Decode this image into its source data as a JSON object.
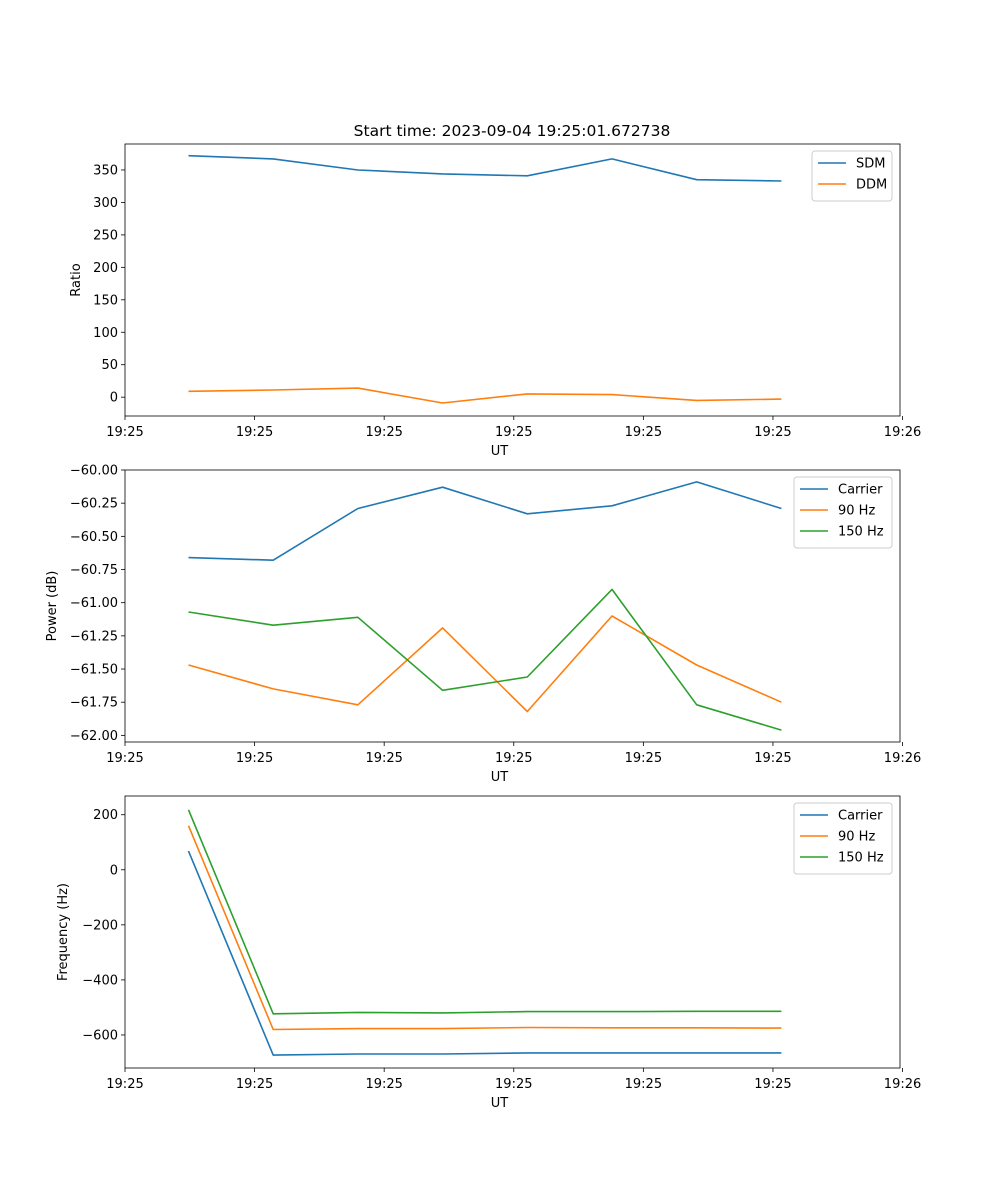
{
  "figure": {
    "title": "Start time: 2023-09-04 19:25:01.672738"
  },
  "colors": {
    "c0": "#1f77b4",
    "c1": "#ff7f0e",
    "c2": "#2ca02c"
  },
  "chart_data": [
    {
      "type": "line",
      "title": "Start time: 2023-09-04 19:25:01.672738",
      "xlabel": "UT",
      "ylabel": "Ratio",
      "x": [
        0,
        1,
        2,
        3,
        4,
        5,
        6,
        7
      ],
      "xlim": [
        -0.75,
        8.4
      ],
      "xticks": [
        -0.75,
        0.78,
        2.31,
        3.84,
        5.37,
        6.9,
        8.43
      ],
      "xtick_labels": [
        "19:25",
        "19:25",
        "19:25",
        "19:25",
        "19:25",
        "19:25",
        "19:26"
      ],
      "ylim": [
        -29,
        390
      ],
      "yticks": [
        0,
        50,
        100,
        150,
        200,
        250,
        300,
        350
      ],
      "ytick_labels": [
        "0",
        "50",
        "100",
        "150",
        "200",
        "250",
        "300",
        "350"
      ],
      "legend_position": "top-right",
      "series": [
        {
          "name": "SDM",
          "color": "#1f77b4",
          "values": [
            372,
            367,
            350,
            344,
            341,
            367,
            335,
            333
          ]
        },
        {
          "name": "DDM",
          "color": "#ff7f0e",
          "values": [
            9,
            11,
            14,
            -9,
            5,
            4,
            -5,
            -3
          ]
        }
      ]
    },
    {
      "type": "line",
      "title": "",
      "xlabel": "UT",
      "ylabel": "Power (dB)",
      "x": [
        0,
        1,
        2,
        3,
        4,
        5,
        6,
        7
      ],
      "xlim": [
        -0.75,
        8.4
      ],
      "xticks": [
        -0.75,
        0.78,
        2.31,
        3.84,
        5.37,
        6.9,
        8.43
      ],
      "xtick_labels": [
        "19:25",
        "19:25",
        "19:25",
        "19:25",
        "19:25",
        "19:25",
        "19:26"
      ],
      "ylim": [
        -62.05,
        -60.0
      ],
      "yticks": [
        -60.0,
        -60.25,
        -60.5,
        -60.75,
        -61.0,
        -61.25,
        -61.5,
        -61.75,
        -62.0
      ],
      "ytick_labels": [
        "−60.00",
        "−60.25",
        "−60.50",
        "−60.75",
        "−61.00",
        "−61.25",
        "−61.50",
        "−61.75",
        "−62.00"
      ],
      "legend_position": "top-right",
      "series": [
        {
          "name": "Carrier",
          "color": "#1f77b4",
          "values": [
            -60.66,
            -60.68,
            -60.29,
            -60.13,
            -60.33,
            -60.27,
            -60.09,
            -60.29
          ]
        },
        {
          "name": "90 Hz",
          "color": "#ff7f0e",
          "values": [
            -61.47,
            -61.65,
            -61.77,
            -61.19,
            -61.82,
            -61.1,
            -61.47,
            -61.75
          ]
        },
        {
          "name": "150 Hz",
          "color": "#2ca02c",
          "values": [
            -61.07,
            -61.17,
            -61.11,
            -61.66,
            -61.56,
            -60.9,
            -61.77,
            -61.96
          ]
        }
      ]
    },
    {
      "type": "line",
      "title": "",
      "xlabel": "UT",
      "ylabel": "Frequency (Hz)",
      "x": [
        0,
        1,
        2,
        3,
        4,
        5,
        6,
        7
      ],
      "xlim": [
        -0.75,
        8.4
      ],
      "xticks": [
        -0.75,
        0.78,
        2.31,
        3.84,
        5.37,
        6.9,
        8.43
      ],
      "xtick_labels": [
        "19:25",
        "19:25",
        "19:25",
        "19:25",
        "19:25",
        "19:25",
        "19:26"
      ],
      "ylim": [
        -720,
        268
      ],
      "yticks": [
        200,
        0,
        -200,
        -400,
        -600
      ],
      "ytick_labels": [
        "200",
        "0",
        "−200",
        "−400",
        "−600"
      ],
      "legend_position": "top-right",
      "series": [
        {
          "name": "Carrier",
          "color": "#1f77b4",
          "values": [
            68,
            -673,
            -669,
            -669,
            -665,
            -665,
            -665,
            -665
          ]
        },
        {
          "name": "90 Hz",
          "color": "#ff7f0e",
          "values": [
            160,
            -580,
            -577,
            -577,
            -573,
            -574,
            -574,
            -575
          ]
        },
        {
          "name": "150 Hz",
          "color": "#2ca02c",
          "values": [
            218,
            -523,
            -518,
            -520,
            -515,
            -515,
            -514,
            -514
          ]
        }
      ]
    }
  ]
}
